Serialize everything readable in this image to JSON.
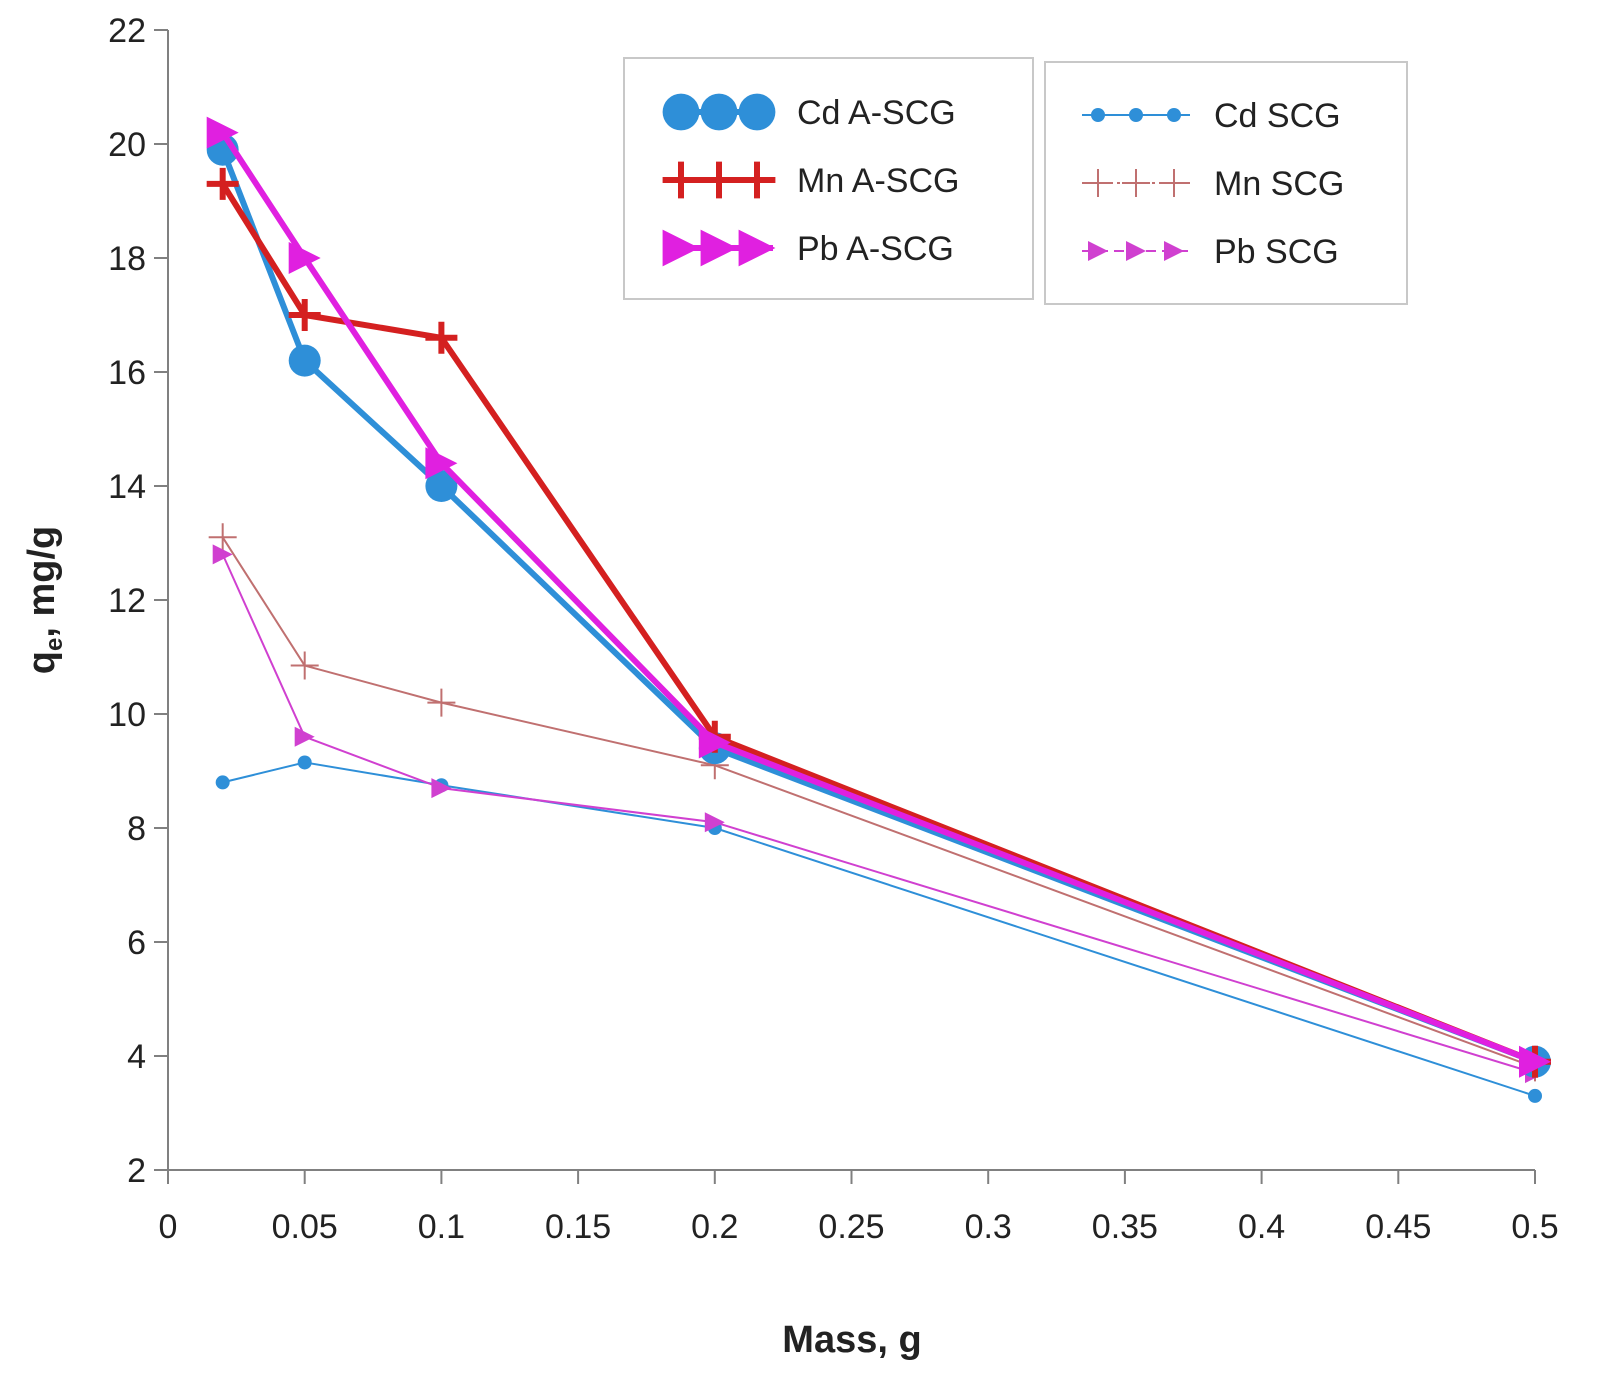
{
  "chart_data": {
    "type": "line",
    "xlabel": "Mass, g",
    "ylabel_main": "q",
    "ylabel_sub": "e",
    "ylabel_rest": ", mg/g",
    "xlim": [
      0,
      0.5
    ],
    "ylim": [
      2,
      22
    ],
    "x_ticks": [
      "0",
      "0.05",
      "0.1",
      "0.15",
      "0.2",
      "0.25",
      "0.3",
      "0.35",
      "0.4",
      "0.45",
      "0.5"
    ],
    "y_ticks": [
      "2",
      "4",
      "6",
      "8",
      "10",
      "12",
      "14",
      "16",
      "18",
      "20",
      "22"
    ],
    "grid": false,
    "legend_placement": "top-right",
    "x": [
      0.02,
      0.05,
      0.1,
      0.2,
      0.5
    ],
    "series": [
      {
        "name": "Cd A-SCG",
        "values": [
          19.9,
          16.2,
          14.0,
          9.4,
          3.9
        ],
        "color": "#2e8fd8",
        "marker": "circle-large",
        "width": 6,
        "legend_group": 0
      },
      {
        "name": "Mn A-SCG",
        "values": [
          19.3,
          17.0,
          16.6,
          9.6,
          3.9
        ],
        "color": "#d42020",
        "marker": "plus",
        "width": 6,
        "legend_group": 0
      },
      {
        "name": "Pb A-SCG",
        "values": [
          20.2,
          18.0,
          14.4,
          9.5,
          3.9
        ],
        "color": "#e020e0",
        "marker": "triangle-right",
        "width": 6,
        "legend_group": 0
      },
      {
        "name": "Cd SCG",
        "values": [
          8.8,
          9.15,
          8.75,
          8.0,
          3.3
        ],
        "color": "#2e8fd8",
        "marker": "circle-small",
        "width": 2,
        "legend_group": 1
      },
      {
        "name": "Mn SCG",
        "values": [
          13.1,
          10.85,
          10.2,
          9.1,
          3.8
        ],
        "color": "#c07070",
        "marker": "plus-thin",
        "width": 2,
        "legend_group": 1
      },
      {
        "name": "Pb SCG",
        "values": [
          12.8,
          9.6,
          8.7,
          8.1,
          3.7
        ],
        "color": "#d040d0",
        "marker": "triangle-small",
        "width": 2,
        "legend_group": 1
      }
    ]
  }
}
